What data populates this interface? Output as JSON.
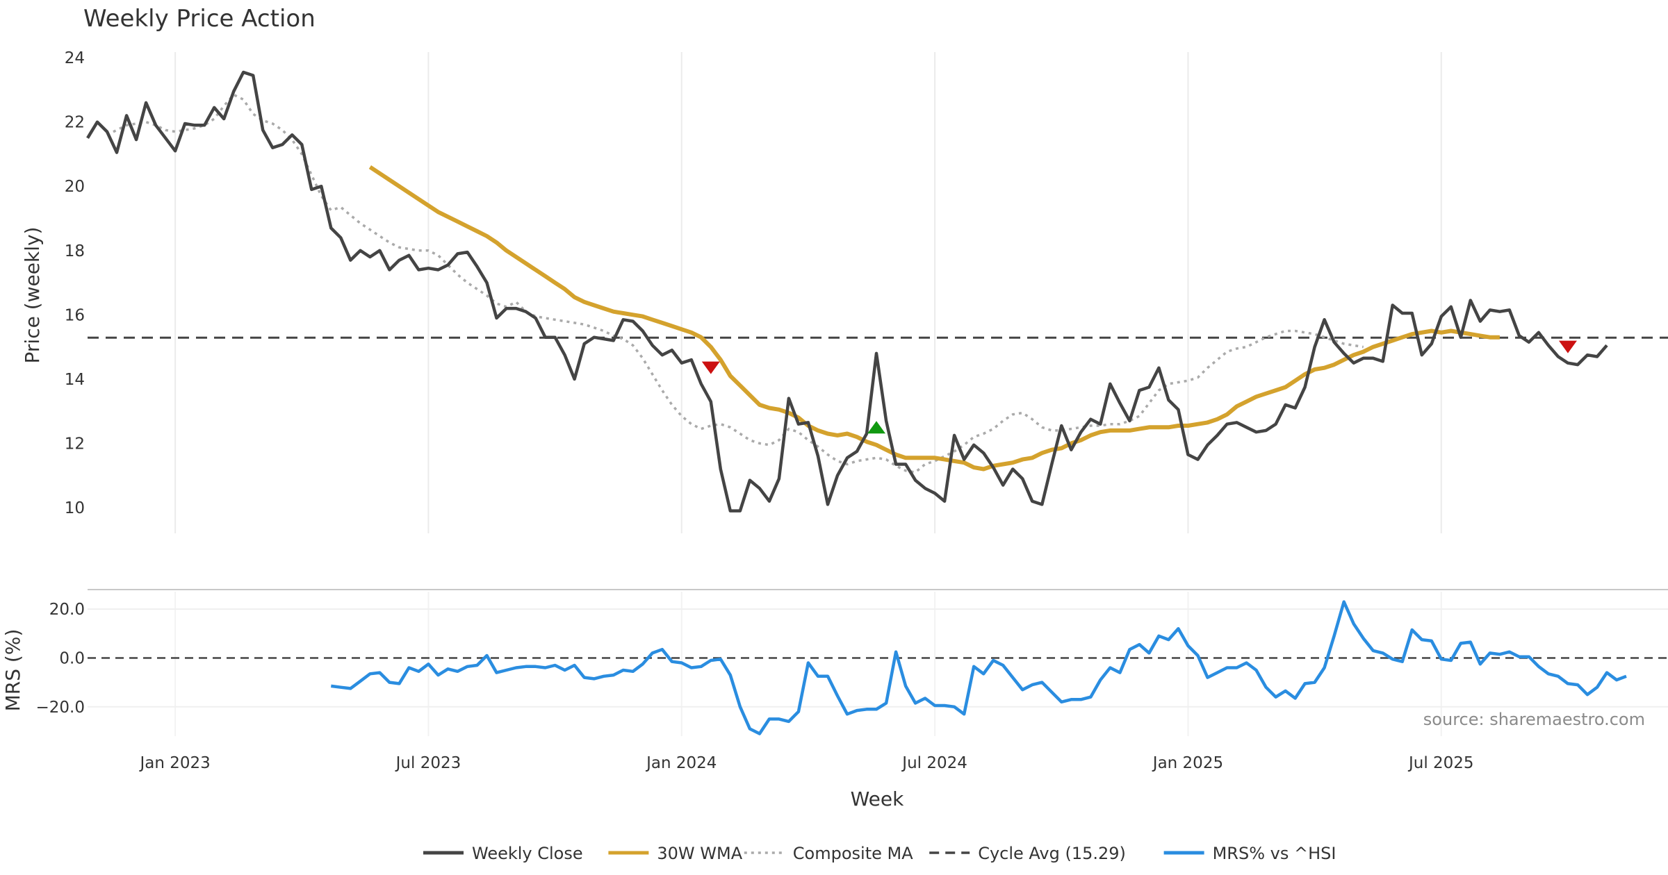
{
  "chart_data": {
    "type": "line",
    "title": "Weekly Price Action",
    "xlabel": "Week",
    "source": "source: sharemaestro.com",
    "x_ticks": [
      "Jan 2023",
      "Jul 2023",
      "Jan 2024",
      "Jul 2024",
      "Jan 2025",
      "Jul 2025"
    ],
    "x_tick_week_index": [
      9,
      35,
      61,
      87,
      113,
      139
    ],
    "week_count": 157,
    "price_panel": {
      "ylabel": "Price (weekly)",
      "ylim": [
        9.2,
        24.5
      ],
      "y_ticks": [
        "10",
        "12",
        "14",
        "16",
        "18",
        "20",
        "22",
        "24"
      ],
      "y_tick_values": [
        10,
        12,
        14,
        16,
        18,
        20,
        22,
        24
      ],
      "cycle_avg": 15.29,
      "weekly_close": [
        21.5,
        22.0,
        21.7,
        21.05,
        22.2,
        21.45,
        22.6,
        21.9,
        21.5,
        21.1,
        21.95,
        21.9,
        21.9,
        22.45,
        22.1,
        22.95,
        23.55,
        23.45,
        21.75,
        21.2,
        21.3,
        21.6,
        21.3,
        19.9,
        20.0,
        18.7,
        18.4,
        17.7,
        18.0,
        17.8,
        18.0,
        17.4,
        17.7,
        17.85,
        17.4,
        17.45,
        17.4,
        17.55,
        17.9,
        17.95,
        17.5,
        17.0,
        15.9,
        16.2,
        16.2,
        16.1,
        15.9,
        15.3,
        15.3,
        14.75,
        14.0,
        15.1,
        15.3,
        15.25,
        15.2,
        15.85,
        15.8,
        15.5,
        15.05,
        14.75,
        14.9,
        14.5,
        14.6,
        13.85,
        13.3,
        11.2,
        9.9,
        9.9,
        10.85,
        10.6,
        10.2,
        10.9,
        13.4,
        12.6,
        12.65,
        11.6,
        10.1,
        11.0,
        11.55,
        11.75,
        12.3,
        14.8,
        12.7,
        11.35,
        11.35,
        10.85,
        10.6,
        10.45,
        10.2,
        12.25,
        11.5,
        11.95,
        11.7,
        11.25,
        10.7,
        11.2,
        10.9,
        10.2,
        10.1,
        11.35,
        12.55,
        11.8,
        12.35,
        12.75,
        12.6,
        13.85,
        13.25,
        12.7,
        13.65,
        13.75,
        14.35,
        13.35,
        13.05,
        11.65,
        11.5,
        11.95,
        12.25,
        12.6,
        12.65,
        12.5,
        12.35,
        12.4,
        12.6,
        13.2,
        13.1,
        13.75,
        15.0,
        15.85,
        15.15,
        14.8,
        14.5,
        14.65,
        14.65,
        14.55,
        16.3,
        16.05,
        16.05,
        14.75,
        15.1,
        15.95,
        16.25,
        15.3,
        16.45,
        15.8,
        16.15,
        16.1,
        16.15,
        15.35,
        15.15,
        15.45,
        15.05,
        14.7,
        14.5,
        14.45,
        14.75,
        14.7,
        15.05
      ],
      "wma_30w": {
        "start_index": 29,
        "values": [
          20.6,
          20.4,
          20.2,
          20.0,
          19.8,
          19.6,
          19.4,
          19.2,
          19.05,
          18.9,
          18.75,
          18.6,
          18.45,
          18.25,
          18.0,
          17.8,
          17.6,
          17.4,
          17.2,
          17.0,
          16.8,
          16.55,
          16.4,
          16.3,
          16.2,
          16.1,
          16.05,
          16.0,
          15.95,
          15.85,
          15.75,
          15.65,
          15.55,
          15.45,
          15.3,
          15.0,
          14.6,
          14.1,
          13.8,
          13.5,
          13.2,
          13.1,
          13.05,
          12.95,
          12.8,
          12.55,
          12.4,
          12.3,
          12.25,
          12.3,
          12.2,
          12.05,
          11.95,
          11.8,
          11.65,
          11.55,
          11.55,
          11.55,
          11.55,
          11.5,
          11.45,
          11.4,
          11.25,
          11.2,
          11.3,
          11.35,
          11.4,
          11.5,
          11.55,
          11.7,
          11.8,
          11.85,
          12.0,
          12.1,
          12.25,
          12.35,
          12.4,
          12.4,
          12.4,
          12.45,
          12.5,
          12.5,
          12.5,
          12.55,
          12.55,
          12.6,
          12.65,
          12.75,
          12.9,
          13.15,
          13.3,
          13.45,
          13.55,
          13.65,
          13.75,
          13.95,
          14.15,
          14.3,
          14.35,
          14.45,
          14.6,
          14.75,
          14.85,
          15.0,
          15.1,
          15.2,
          15.3,
          15.4,
          15.45,
          15.5,
          15.45,
          15.5,
          15.45,
          15.4,
          15.35,
          15.3,
          15.3
        ]
      },
      "composite_ma": {
        "start_index": 2,
        "values": [
          21.6,
          21.75,
          21.9,
          21.95,
          22.0,
          21.9,
          21.75,
          21.7,
          21.75,
          21.8,
          21.9,
          22.1,
          22.5,
          22.85,
          22.7,
          22.25,
          22.05,
          21.95,
          21.75,
          21.45,
          21.0,
          20.35,
          19.7,
          19.25,
          19.35,
          19.1,
          18.85,
          18.65,
          18.45,
          18.25,
          18.1,
          18.05,
          18.0,
          18.0,
          17.85,
          17.55,
          17.25,
          17.0,
          16.8,
          16.6,
          16.35,
          16.25,
          16.4,
          16.1,
          15.95,
          15.9,
          15.85,
          15.8,
          15.75,
          15.7,
          15.6,
          15.5,
          15.35,
          15.25,
          15.05,
          14.65,
          14.15,
          13.65,
          13.2,
          12.85,
          12.6,
          12.45,
          12.55,
          12.6,
          12.5,
          12.3,
          12.1,
          12.0,
          11.95,
          12.1,
          12.45,
          12.35,
          12.1,
          11.9,
          11.65,
          11.45,
          11.35,
          11.45,
          11.5,
          11.55,
          11.5,
          11.3,
          11.15,
          11.1,
          11.35,
          11.45,
          11.6,
          11.75,
          11.95,
          12.2,
          12.3,
          12.45,
          12.7,
          12.9,
          12.95,
          12.75,
          12.5,
          12.4,
          12.4,
          12.45,
          12.5,
          12.55,
          12.55,
          12.6,
          12.6,
          12.7,
          12.85,
          13.25,
          13.65,
          13.85,
          13.9,
          13.95,
          14.05,
          14.35,
          14.6,
          14.85,
          14.95,
          15.0,
          15.15,
          15.3,
          15.4,
          15.5,
          15.5,
          15.45,
          15.4,
          15.3,
          15.2,
          15.1,
          15.05,
          15.0
        ]
      },
      "signals": [
        {
          "type": "sell",
          "week_index": 64,
          "value": 14.35
        },
        {
          "type": "buy",
          "week_index": 81,
          "value": 12.5
        },
        {
          "type": "sell",
          "week_index": 152,
          "value": 15.0
        }
      ]
    },
    "mrs_panel": {
      "ylabel": "MRS (%)",
      "ylim": [
        -32,
        28
      ],
      "y_ticks": [
        "20.0",
        "0.0",
        "−20.0"
      ],
      "y_tick_values": [
        20,
        0,
        -20
      ],
      "zero_line": 0,
      "mrs_vs_hsi": {
        "start_index": 25,
        "values": [
          -11.5,
          -12,
          -12.5,
          -9.5,
          -6.5,
          -6,
          -10,
          -10.5,
          -4,
          -5.5,
          -2.5,
          -7,
          -4.5,
          -5.5,
          -3.5,
          -3,
          1,
          -6,
          -5,
          -4,
          -3.5,
          -3.5,
          -4,
          -3,
          -5,
          -3,
          -8,
          -8.5,
          -7.5,
          -7,
          -5,
          -5.5,
          -2.5,
          2,
          3.5,
          -1.5,
          -2,
          -4,
          -3.5,
          -1,
          -0.5,
          -7,
          -20,
          -29,
          -31,
          -25,
          -25,
          -26,
          -22,
          -2,
          -7.5,
          -7.5,
          -15.5,
          -23,
          -21.5,
          -21,
          -21,
          -18.5,
          2.5,
          -11.5,
          -18.5,
          -16.5,
          -19.5,
          -19.5,
          -20,
          -23,
          -3.5,
          -6.5,
          -1,
          -3,
          -8,
          -13,
          -11,
          -10,
          -14,
          -18,
          -17,
          -17,
          -16,
          -9,
          -4,
          -6,
          3.5,
          5.5,
          2,
          9,
          7.5,
          12,
          5,
          1,
          -8,
          -6,
          -4,
          -4,
          -2,
          -5,
          -12,
          -16,
          -13.5,
          -16.5,
          -10.5,
          -10,
          -4,
          9,
          23,
          14,
          8,
          3,
          2,
          -0.5,
          -1.5,
          11.5,
          7.5,
          7,
          -0.5,
          -1,
          6,
          6.5,
          -2.5,
          2,
          1.5,
          2.5,
          0.5,
          0.5,
          -3.5,
          -6.5,
          -7.5,
          -10.5,
          -11,
          -15,
          -12,
          -6,
          -9,
          -7.5
        ]
      }
    },
    "legend": [
      {
        "label": "Weekly Close",
        "color": "#444444",
        "style": "solid"
      },
      {
        "label": "30W WMA",
        "color": "#D4A22D",
        "style": "solid"
      },
      {
        "label": "Composite MA",
        "color": "#AAAAAA",
        "style": "dotted"
      },
      {
        "label": "Cycle Avg (15.29)",
        "color": "#444444",
        "style": "dashed"
      },
      {
        "label": "MRS% vs ^HSI",
        "color": "#2A8DE0",
        "style": "solid"
      }
    ],
    "colors": {
      "close": "#444444",
      "wma": "#D4A22D",
      "composite": "#AAAAAA",
      "cycle": "#444444",
      "mrs": "#2A8DE0",
      "sell": "#CC1111",
      "buy": "#119911",
      "grid": "#EBEBEB"
    }
  }
}
